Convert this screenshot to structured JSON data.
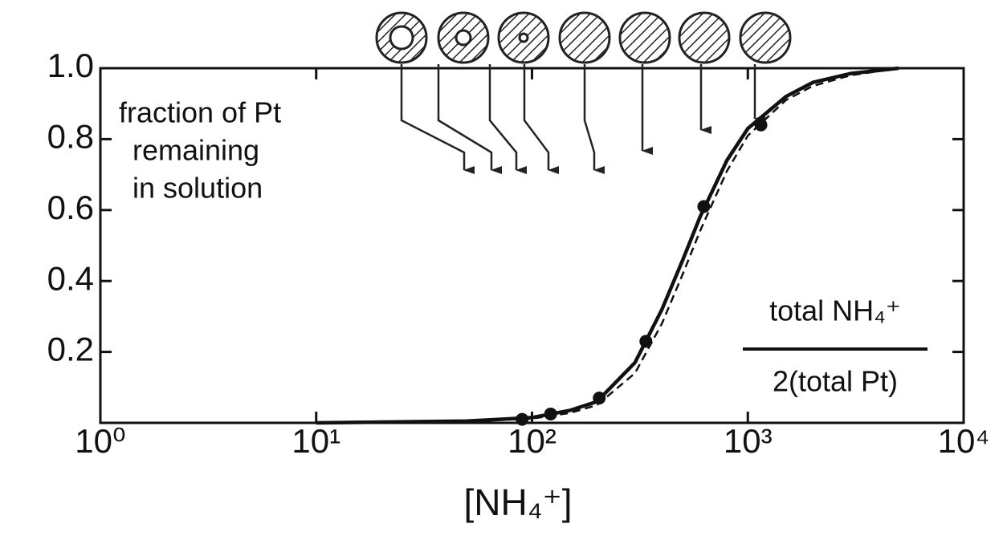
{
  "chart_data": {
    "type": "scatter",
    "annotation_lines": [
      "fraction of Pt",
      "remaining",
      "in solution"
    ],
    "ratio_label": {
      "numerator": "total NH₄⁺",
      "denominator": "2(total Pt)"
    },
    "x_label": "[NH₄⁺]",
    "xlog": true,
    "xlim": [
      1,
      10000
    ],
    "xticks": [
      {
        "value": 1,
        "label": "10⁰"
      },
      {
        "value": 10,
        "label": "10¹"
      },
      {
        "value": 100,
        "label": "10²"
      },
      {
        "value": 1000,
        "label": "10³"
      },
      {
        "value": 10000,
        "label": "10⁴"
      }
    ],
    "ylim": [
      0,
      1
    ],
    "yticks": [
      0.2,
      0.4,
      0.6,
      0.8,
      {
        "value": 1,
        "label": "1.0"
      }
    ],
    "series": [
      {
        "mode": "line",
        "dash": false,
        "color": "#111",
        "x": [
          10,
          50,
          100,
          150,
          200,
          300,
          400,
          500,
          600,
          800,
          1000,
          1500,
          2000,
          3000,
          5000
        ],
        "values": [
          0,
          0.005,
          0.015,
          0.035,
          0.06,
          0.17,
          0.32,
          0.46,
          0.58,
          0.74,
          0.83,
          0.92,
          0.96,
          0.985,
          1
        ]
      },
      {
        "mode": "line",
        "dash": true,
        "color": "#111",
        "x": [
          10,
          50,
          100,
          150,
          200,
          300,
          400,
          500,
          600,
          800,
          1000,
          1500,
          2000,
          3000,
          5000
        ],
        "values": [
          0,
          0.004,
          0.012,
          0.028,
          0.05,
          0.14,
          0.28,
          0.42,
          0.54,
          0.71,
          0.81,
          0.91,
          0.95,
          0.98,
          1
        ]
      },
      {
        "mode": "markers",
        "color": "#111",
        "x": [
          90,
          122,
          205,
          337,
          625,
          1150
        ],
        "values": [
          0.01,
          0.025,
          0.07,
          0.23,
          0.61,
          0.84
        ]
      }
    ]
  }
}
